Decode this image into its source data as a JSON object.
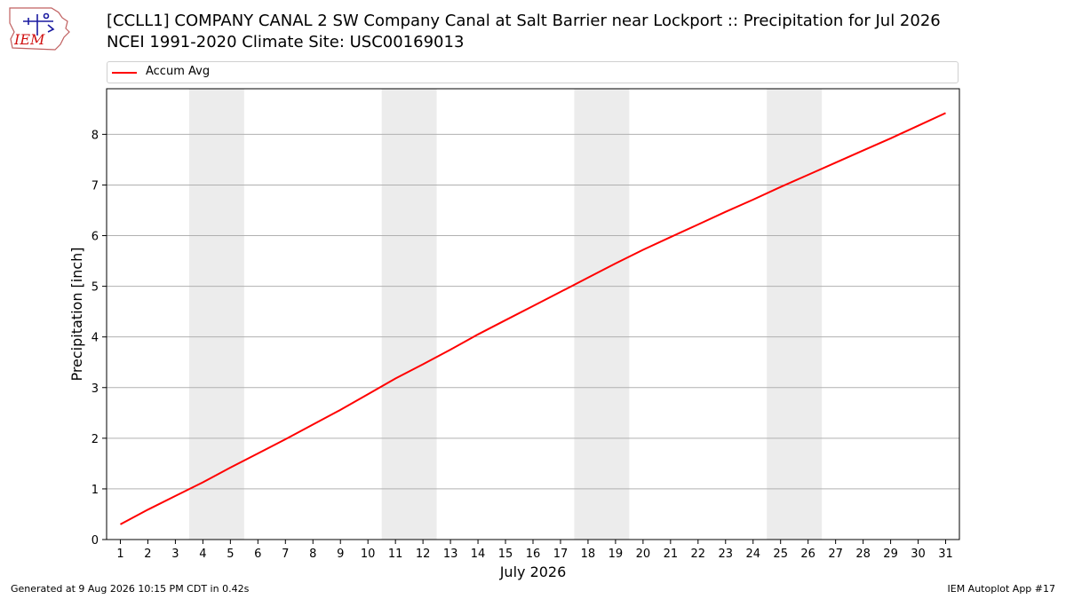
{
  "logo": {
    "text": "IEM"
  },
  "header": {
    "title_line1": "[CCLL1] COMPANY CANAL 2 SW Company Canal at Salt Barrier near Lockport :: Precipitation for Jul 2026",
    "title_line2": "NCEI 1991-2020 Climate Site: USC00169013"
  },
  "footer": {
    "left": "Generated at 9 Aug 2026 10:15 PM CDT in 0.42s",
    "right": "IEM Autoplot App #17"
  },
  "chart_data": {
    "type": "line",
    "xlabel": "July 2026",
    "ylabel": "Precipitation [inch]",
    "x": [
      1,
      2,
      3,
      4,
      5,
      6,
      7,
      8,
      9,
      10,
      11,
      12,
      13,
      14,
      15,
      16,
      17,
      18,
      19,
      20,
      21,
      22,
      23,
      24,
      25,
      26,
      27,
      28,
      29,
      30,
      31
    ],
    "xlim": [
      0.5,
      31.5
    ],
    "ylim": [
      0,
      8.9
    ],
    "yticks": [
      0,
      1,
      2,
      3,
      4,
      5,
      6,
      7,
      8
    ],
    "grid": "y",
    "legend_position": "top",
    "weekend_bands": [
      [
        3.5,
        5.5
      ],
      [
        10.5,
        12.5
      ],
      [
        17.5,
        19.5
      ],
      [
        24.5,
        26.5
      ]
    ],
    "band_color": "#ececec",
    "series": [
      {
        "name": "Accum Avg",
        "color": "#ff0000",
        "values": [
          0.3,
          0.59,
          0.86,
          1.13,
          1.42,
          1.7,
          1.98,
          2.27,
          2.56,
          2.87,
          3.18,
          3.46,
          3.75,
          4.05,
          4.33,
          4.61,
          4.89,
          5.17,
          5.45,
          5.72,
          5.97,
          6.22,
          6.47,
          6.71,
          6.96,
          7.2,
          7.44,
          7.68,
          7.92,
          8.17,
          8.42
        ]
      }
    ]
  }
}
